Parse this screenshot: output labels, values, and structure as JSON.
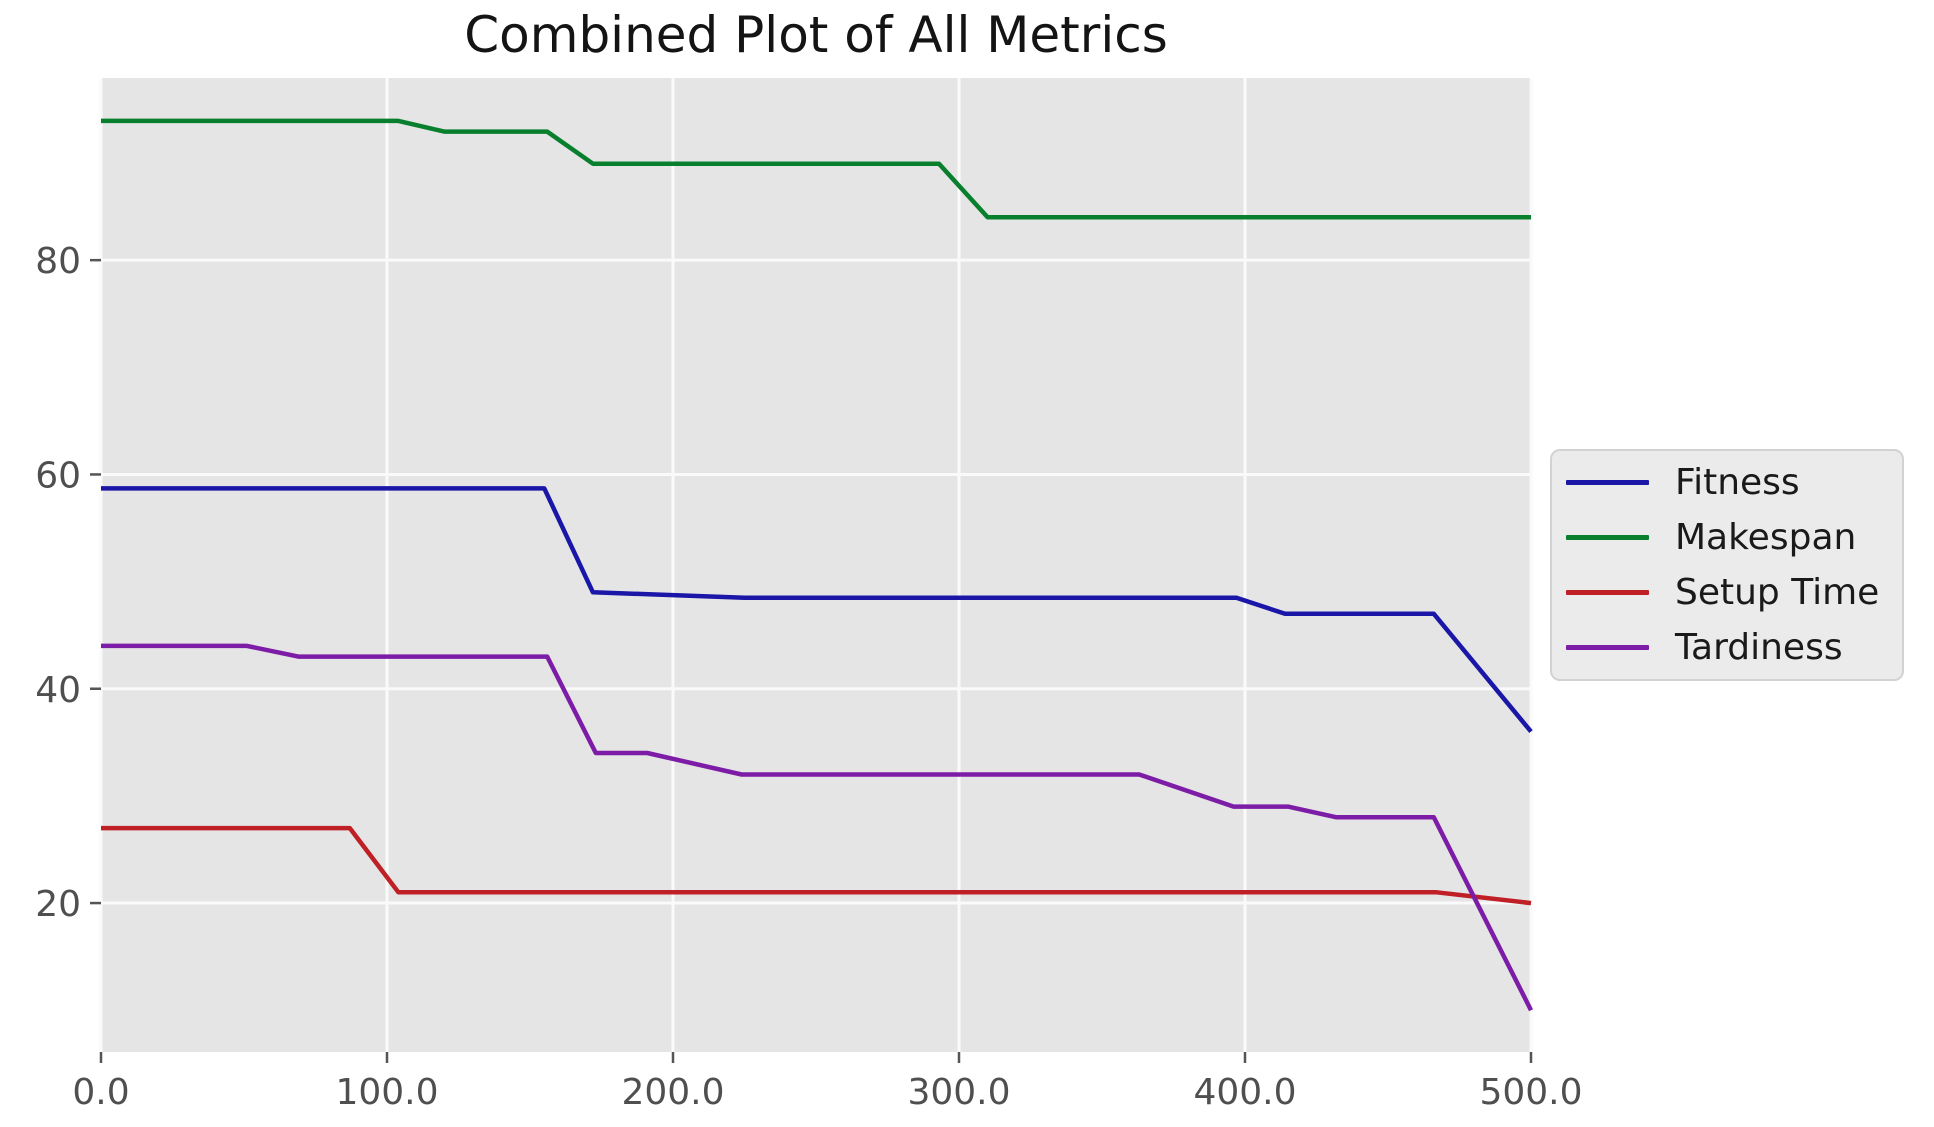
{
  "chart_data": {
    "type": "line",
    "title": "Combined Plot of All Metrics",
    "xlabel": "",
    "ylabel": "",
    "xlim": [
      0,
      500
    ],
    "ylim": [
      6.1,
      97.0
    ],
    "grid": true,
    "x_ticks": {
      "values": [
        0,
        100,
        200,
        300,
        400,
        500
      ],
      "labels": [
        "0.0",
        "100.0",
        "200.0",
        "300.0",
        "400.0",
        "500.0"
      ]
    },
    "y_ticks": {
      "values": [
        20,
        40,
        60,
        80
      ],
      "labels": [
        "20",
        "40",
        "60",
        "80"
      ]
    },
    "legend": {
      "position": "right-outside",
      "entries": [
        "Fitness",
        "Makespan",
        "Setup Time",
        "Tardiness"
      ]
    },
    "colors": {
      "plot_background": "#e5e5e5",
      "gridline": "#fafafa",
      "tick": "#555555",
      "tick_label": "#4f4f4f",
      "title": "#141414",
      "legend_background": "#ebebeb",
      "legend_border": "#d2d2d2",
      "legend_text": "#1a1a1a"
    },
    "series": [
      {
        "name": "Fitness",
        "color": "#1a16a8",
        "points": [
          [
            0,
            58.7
          ],
          [
            155,
            58.7
          ],
          [
            172,
            49
          ],
          [
            225,
            48.5
          ],
          [
            397,
            48.5
          ],
          [
            414,
            47
          ],
          [
            466,
            47
          ],
          [
            500,
            36
          ]
        ]
      },
      {
        "name": "Makespan",
        "color": "#087f2d",
        "points": [
          [
            0,
            93
          ],
          [
            104,
            93
          ],
          [
            120,
            92
          ],
          [
            156,
            92
          ],
          [
            172,
            89
          ],
          [
            293,
            89
          ],
          [
            310,
            84
          ],
          [
            500,
            84
          ]
        ]
      },
      {
        "name": "Setup Time",
        "color": "#bf2026",
        "points": [
          [
            0,
            27
          ],
          [
            87,
            27
          ],
          [
            104,
            21
          ],
          [
            467,
            21
          ],
          [
            500,
            20
          ]
        ]
      },
      {
        "name": "Tardiness",
        "color": "#7d1ca6",
        "points": [
          [
            0,
            44
          ],
          [
            51,
            44
          ],
          [
            69,
            43
          ],
          [
            156,
            43
          ],
          [
            173,
            34
          ],
          [
            191,
            34
          ],
          [
            224,
            32
          ],
          [
            363,
            32
          ],
          [
            396,
            29
          ],
          [
            415,
            29
          ],
          [
            432,
            28
          ],
          [
            466,
            28
          ],
          [
            500,
            10
          ]
        ]
      }
    ]
  }
}
